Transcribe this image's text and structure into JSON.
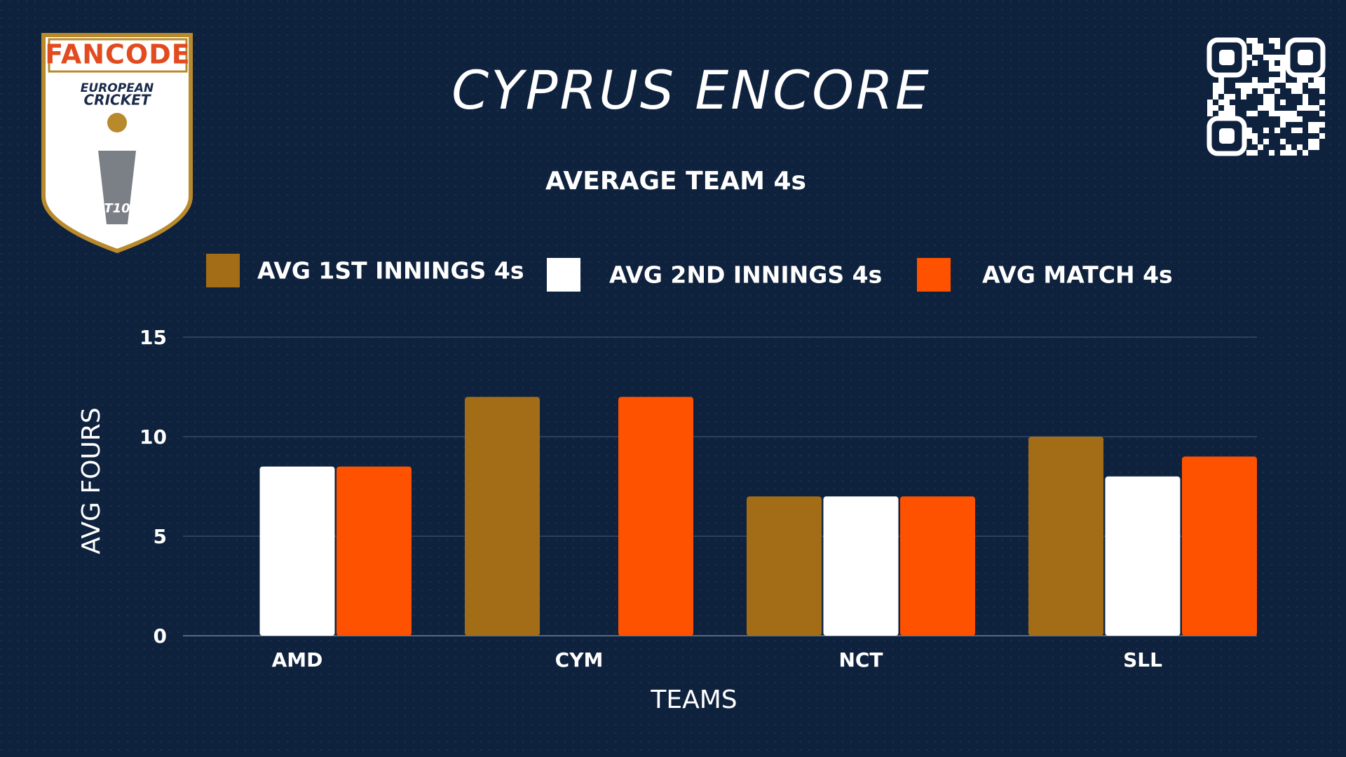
{
  "logo": {
    "brand": "FANCODE",
    "line1": "EUROPEAN",
    "line2": "CRICKET",
    "badge": "T10"
  },
  "chart_data": {
    "type": "bar",
    "title": "CYPRUS ENCORE",
    "subtitle": "AVERAGE TEAM 4s",
    "x_label": "TEAMS",
    "y_label": "AVG FOURS",
    "categories": [
      "AMD",
      "CYM",
      "NCT",
      "SLL"
    ],
    "series": [
      {
        "name": "AVG 1ST INNINGS 4s",
        "color": "#a26d16",
        "values": [
          0,
          12,
          7,
          10
        ]
      },
      {
        "name": "AVG 2ND INNINGS 4s",
        "color": "#ffffff",
        "values": [
          8.5,
          0,
          7,
          8
        ]
      },
      {
        "name": "AVG MATCH 4s",
        "color": "#ff5200",
        "values": [
          8.5,
          12,
          7,
          9
        ]
      }
    ],
    "ylim": [
      0,
      15
    ],
    "yticks": [
      0,
      5,
      10,
      15
    ],
    "grid": true
  }
}
